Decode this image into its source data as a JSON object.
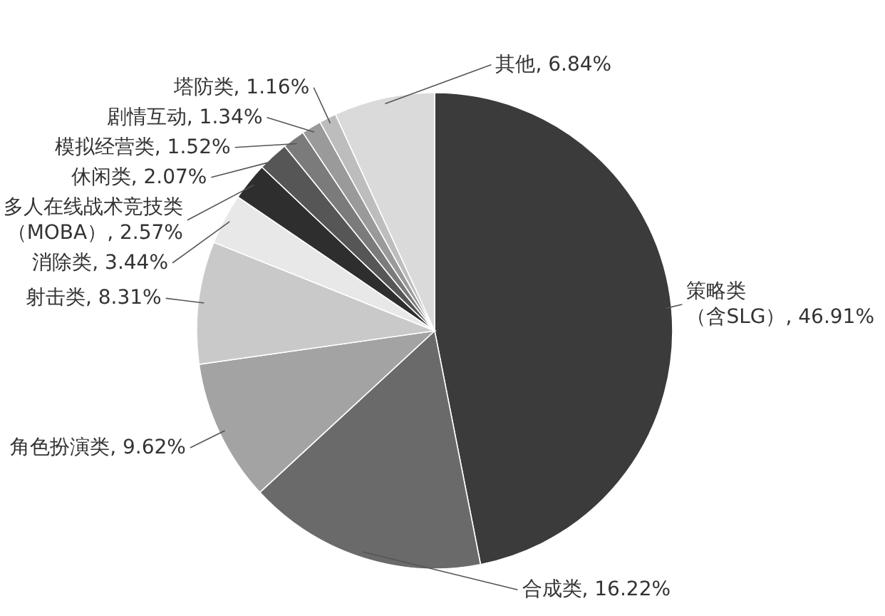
{
  "chart_data": {
    "type": "pie",
    "categories": [
      "策略类（含SLG）",
      "合成类",
      "角色扮演类",
      "射击类",
      "消除类",
      "多人在线战术竞技类（MOBA）",
      "休闲类",
      "模拟经营类",
      "剧情互动",
      "塔防类",
      "其他"
    ],
    "values": [
      46.91,
      16.22,
      9.62,
      8.31,
      3.44,
      2.57,
      2.07,
      1.52,
      1.34,
      1.16,
      6.84
    ],
    "value_labels": [
      "46.91%",
      "16.22%",
      "9.62%",
      "8.31%",
      "3.44%",
      "2.57%",
      "2.07%",
      "1.52%",
      "1.34%",
      "1.16%",
      "6.84%"
    ],
    "colors": [
      "#3b3b3b",
      "#6a6a6a",
      "#a3a3a3",
      "#c9c9c9",
      "#e8e8e8",
      "#2e2e2e",
      "#565656",
      "#7b7b7b",
      "#9a9a9a",
      "#bdbdbd",
      "#dadada"
    ]
  }
}
